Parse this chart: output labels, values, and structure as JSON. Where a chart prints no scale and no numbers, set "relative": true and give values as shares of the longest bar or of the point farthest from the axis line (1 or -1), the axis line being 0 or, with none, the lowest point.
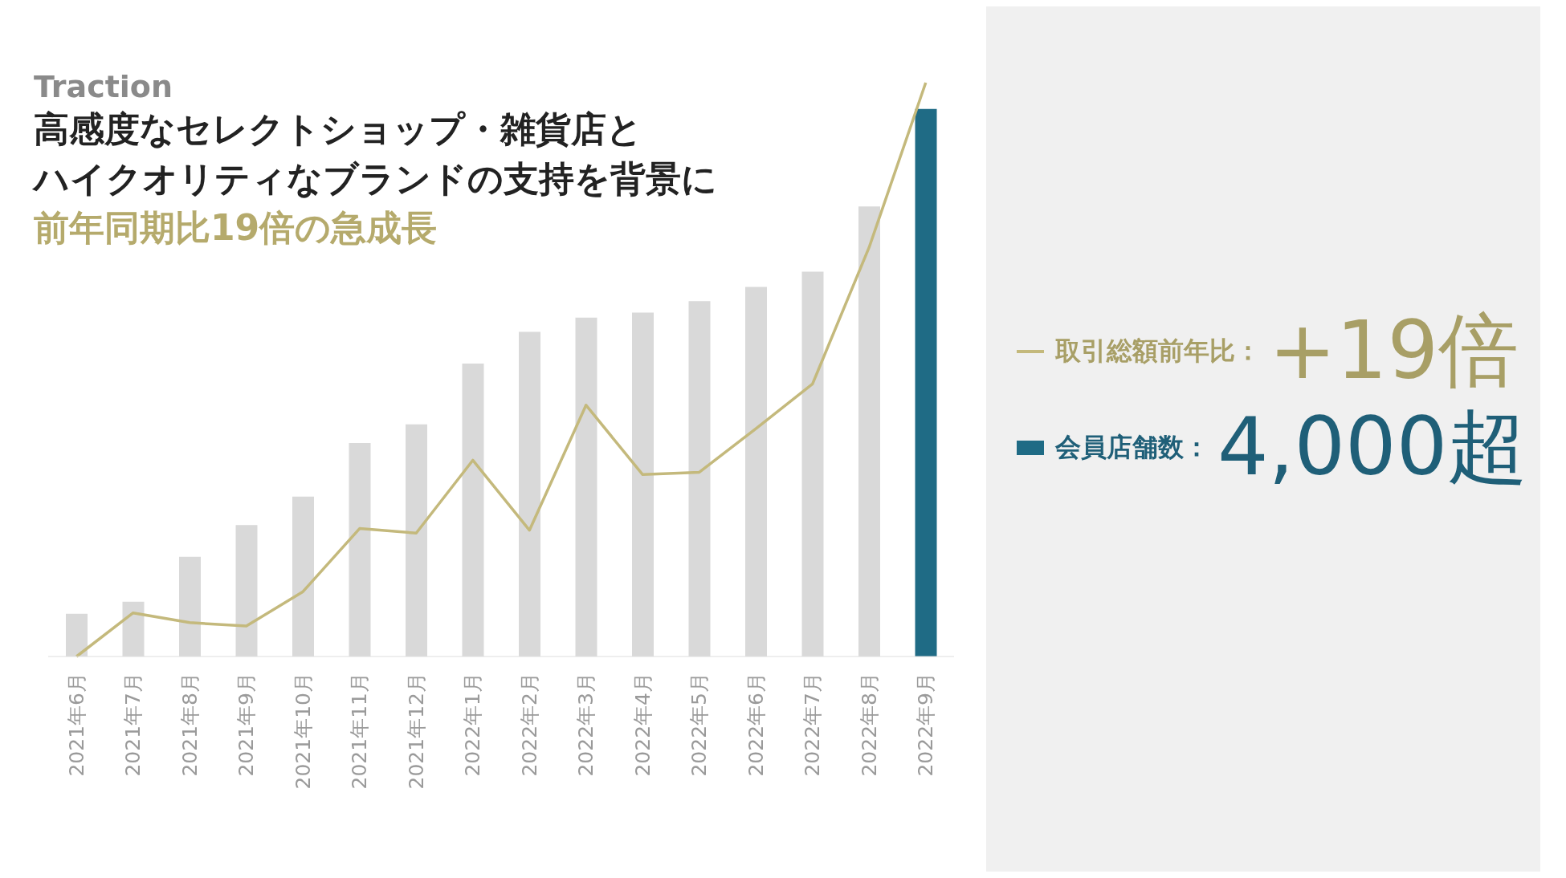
{
  "chart_data": {
    "type": "bar",
    "title": "Traction",
    "subtitle": "高感度なセレクトショップ・雑貨店と",
    "annotations": [
      "ハイクオリティなブランドの支持を背景に",
      "前年同期比19倍の急成長",
      "+19倍",
      "4,000超"
    ],
    "categories": [
      "2021年6月",
      "2021年7月",
      "2021年8月",
      "2021年9月",
      "2021年10月",
      "2021年11月",
      "2021年12月",
      "2022年1月",
      "2022年2月",
      "2022年3月",
      "2022年4月",
      "2022年5月",
      "2022年6月",
      "2022年7月",
      "2022年8月",
      "2022年9月"
    ],
    "relative": true,
    "legend": "right",
    "marker": "none",
    "series": [
      {
        "name": "会員店舗数：",
        "color": "#1f6b85",
        "colors": [
          "#d9d9d9",
          "#d9d9d9",
          "#d9d9d9",
          "#d9d9d9",
          "#d9d9d9",
          "#d9d9d9",
          "#d9d9d9",
          "#d9d9d9",
          "#d9d9d9",
          "#d9d9d9",
          "#d9d9d9",
          "#d9d9d9",
          "#d9d9d9",
          "#d9d9d9",
          "#d9d9d9",
          "#1f6b85"
        ],
        "values": [
          0.078,
          0.1,
          0.182,
          0.24,
          0.292,
          0.39,
          0.424,
          0.535,
          0.593,
          0.619,
          0.628,
          0.649,
          0.675,
          0.703,
          0.822,
          1
        ]
      },
      {
        "name": "取引総額前年比：",
        "type": "line",
        "axis": "y2",
        "color": "#c4b97c",
        "values": [
          0,
          0.076,
          0.059,
          0.053,
          0.113,
          0.223,
          0.215,
          0.342,
          0.22,
          0.438,
          0.317,
          0.321,
          0.397,
          0.475,
          0.713,
          1
        ]
      }
    ]
  }
}
